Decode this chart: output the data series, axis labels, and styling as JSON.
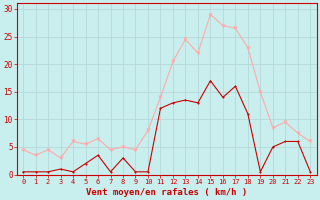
{
  "xlabel": "Vent moyen/en rafales ( km/h )",
  "background_color": "#c8eeed",
  "grid_color": "#b8d8d8",
  "xlim": [
    -0.5,
    23.5
  ],
  "ylim": [
    0,
    31
  ],
  "yticks": [
    0,
    5,
    10,
    15,
    20,
    25,
    30
  ],
  "xticks": [
    0,
    1,
    2,
    3,
    4,
    5,
    6,
    7,
    8,
    9,
    10,
    11,
    12,
    13,
    14,
    15,
    16,
    17,
    18,
    19,
    20,
    21,
    22,
    23
  ],
  "hours": [
    0,
    1,
    2,
    3,
    4,
    5,
    6,
    7,
    8,
    9,
    10,
    11,
    12,
    13,
    14,
    15,
    16,
    17,
    18,
    19,
    20,
    21,
    22,
    23
  ],
  "wind_mean": [
    0.5,
    0.5,
    0.5,
    1,
    0.5,
    2,
    3.5,
    0.5,
    3,
    0.5,
    0.5,
    12,
    13,
    13.5,
    13,
    17,
    14,
    16,
    11,
    0.5,
    5,
    6,
    6,
    0.5
  ],
  "wind_gust": [
    4.5,
    3.5,
    4.5,
    3,
    6,
    5.5,
    6.5,
    4.5,
    5,
    4.5,
    8,
    14,
    20.5,
    24.5,
    22,
    29,
    27,
    26.5,
    23,
    15,
    8.5,
    9.5,
    7.5,
    6
  ],
  "color_mean": "#cc0000",
  "color_gust": "#ffaaaa",
  "marker_size_mean": 2.0,
  "marker_size_gust": 2.5,
  "line_width": 0.8,
  "xlabel_color": "#cc0000",
  "tick_color": "#cc0000",
  "spine_color": "#cc0000",
  "ytick_fontsize": 5.5,
  "xtick_fontsize": 5.0,
  "xlabel_fontsize": 6.5
}
